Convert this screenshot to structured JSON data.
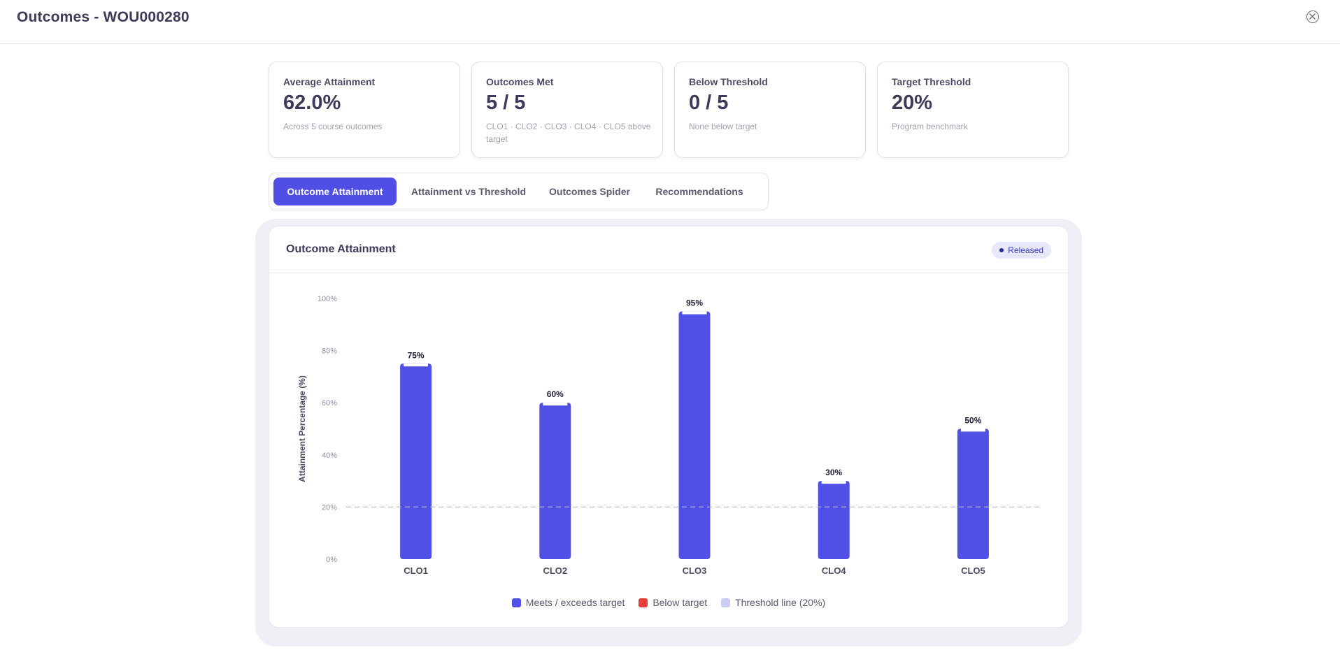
{
  "header": {
    "title": "Outcomes - WOU000280"
  },
  "stats": [
    {
      "label": "Average Attainment",
      "value": "62.0%",
      "sub": "Across 5 course outcomes"
    },
    {
      "label": "Outcomes Met",
      "value": "5 / 5",
      "sub": "CLO1 · CLO2 · CLO3 · CLO4 · CLO5 above target"
    },
    {
      "label": "Below Threshold",
      "value": "0 / 5",
      "sub": "None below target"
    },
    {
      "label": "Target Threshold",
      "value": "20%",
      "sub": "Program benchmark"
    }
  ],
  "tabs": [
    {
      "label": "Outcome Attainment",
      "active": true
    },
    {
      "label": "Attainment vs Threshold",
      "active": false
    },
    {
      "label": "Outcomes Spider",
      "active": false
    },
    {
      "label": "Recommendations",
      "active": false
    }
  ],
  "panel": {
    "title": "Outcome Attainment",
    "badge": "Released"
  },
  "chart_data": {
    "type": "bar",
    "categories": [
      "CLO1",
      "CLO2",
      "CLO3",
      "CLO4",
      "CLO5"
    ],
    "values": [
      75,
      60,
      95,
      30,
      50
    ],
    "data_labels": [
      "75%",
      "60%",
      "95%",
      "30%",
      "50%"
    ],
    "ylabel": "Attainment Percentage (%)",
    "ylim": [
      0,
      100
    ],
    "yticks": [
      "0%",
      "20%",
      "40%",
      "60%",
      "80%",
      "100%"
    ],
    "threshold": 20,
    "colors": {
      "meets": "#5050e6",
      "below": "#e53e3e",
      "threshold": "#c9cbf3",
      "threshold_line": "#b8bbd0"
    },
    "legend": [
      "Meets / exceeds target",
      "Below target",
      "Threshold line (20%)"
    ],
    "grid": false,
    "legend_position": "bottom"
  }
}
